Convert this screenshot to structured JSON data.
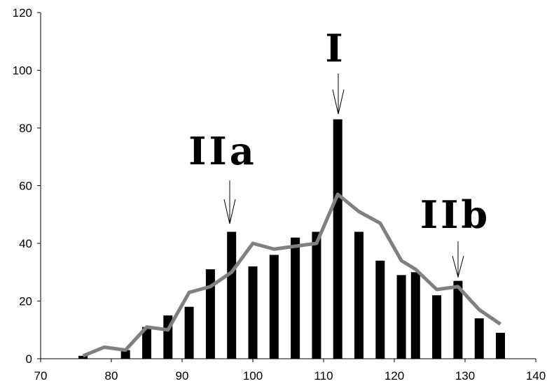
{
  "chart_data": {
    "type": "bar",
    "x": [
      76,
      79,
      82,
      85,
      88,
      91,
      94,
      97,
      100,
      103,
      106,
      109,
      112,
      115,
      118,
      121,
      123,
      126,
      129,
      132,
      135
    ],
    "series": [
      {
        "type": "bar",
        "color": "#000000",
        "values": [
          1,
          null,
          3,
          11,
          15,
          18,
          31,
          44,
          32,
          36,
          42,
          44,
          83,
          44,
          34,
          29,
          30,
          22,
          27,
          14,
          9
        ]
      },
      {
        "type": "line",
        "color": "#808080",
        "values": [
          1,
          4,
          3,
          11,
          10,
          23,
          25,
          30,
          40,
          38,
          39,
          40,
          57,
          51,
          47,
          34,
          31,
          24,
          25,
          17,
          12
        ]
      }
    ],
    "annotations": [
      "IIa",
      "I",
      "IIb"
    ],
    "xlim": [
      70,
      140
    ],
    "xticks": [
      70,
      80,
      90,
      100,
      110,
      120,
      130,
      140
    ],
    "ylim": [
      0,
      120
    ],
    "yticks": [
      0,
      20,
      40,
      60,
      80,
      100,
      120
    ]
  }
}
